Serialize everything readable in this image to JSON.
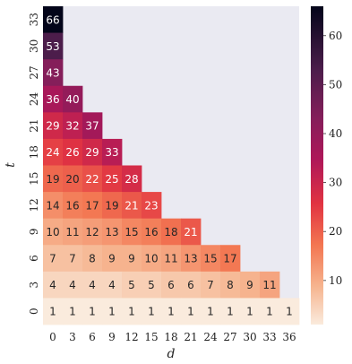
{
  "chart_data": {
    "type": "heatmap",
    "title": "",
    "xlabel": "d",
    "ylabel": "t",
    "x_ticks": [
      "0",
      "3",
      "6",
      "9",
      "12",
      "15",
      "18",
      "21",
      "24",
      "27",
      "30",
      "33",
      "36"
    ],
    "y_ticks_top_to_bottom": [
      "33",
      "30",
      "27",
      "24",
      "21",
      "18",
      "15",
      "12",
      "9",
      "6",
      "3",
      "0"
    ],
    "rows": [
      {
        "t": "33",
        "values": [
          66
        ]
      },
      {
        "t": "30",
        "values": [
          53
        ]
      },
      {
        "t": "27",
        "values": [
          43
        ]
      },
      {
        "t": "24",
        "values": [
          36,
          40
        ]
      },
      {
        "t": "21",
        "values": [
          29,
          32,
          37
        ]
      },
      {
        "t": "18",
        "values": [
          24,
          26,
          29,
          33
        ]
      },
      {
        "t": "15",
        "values": [
          19,
          20,
          22,
          25,
          28
        ]
      },
      {
        "t": "12",
        "values": [
          14,
          16,
          17,
          19,
          21,
          23
        ]
      },
      {
        "t": "9",
        "values": [
          10,
          11,
          12,
          13,
          15,
          16,
          18,
          21
        ]
      },
      {
        "t": "6",
        "values": [
          7,
          7,
          8,
          9,
          9,
          10,
          11,
          13,
          15,
          17
        ]
      },
      {
        "t": "3",
        "values": [
          4,
          4,
          4,
          4,
          5,
          5,
          6,
          6,
          7,
          8,
          9,
          11
        ]
      },
      {
        "t": "0",
        "values": [
          1,
          1,
          1,
          1,
          1,
          1,
          1,
          1,
          1,
          1,
          1,
          1,
          1
        ]
      }
    ],
    "missing_color": "#eaeaf2",
    "colorbar": {
      "range": [
        1,
        66
      ],
      "ticks": [
        10,
        20,
        30,
        40,
        50,
        60
      ],
      "tick_labels": [
        "10",
        "20",
        "30",
        "40",
        "50",
        "60"
      ]
    },
    "colormap": "rocket",
    "grid": false
  }
}
